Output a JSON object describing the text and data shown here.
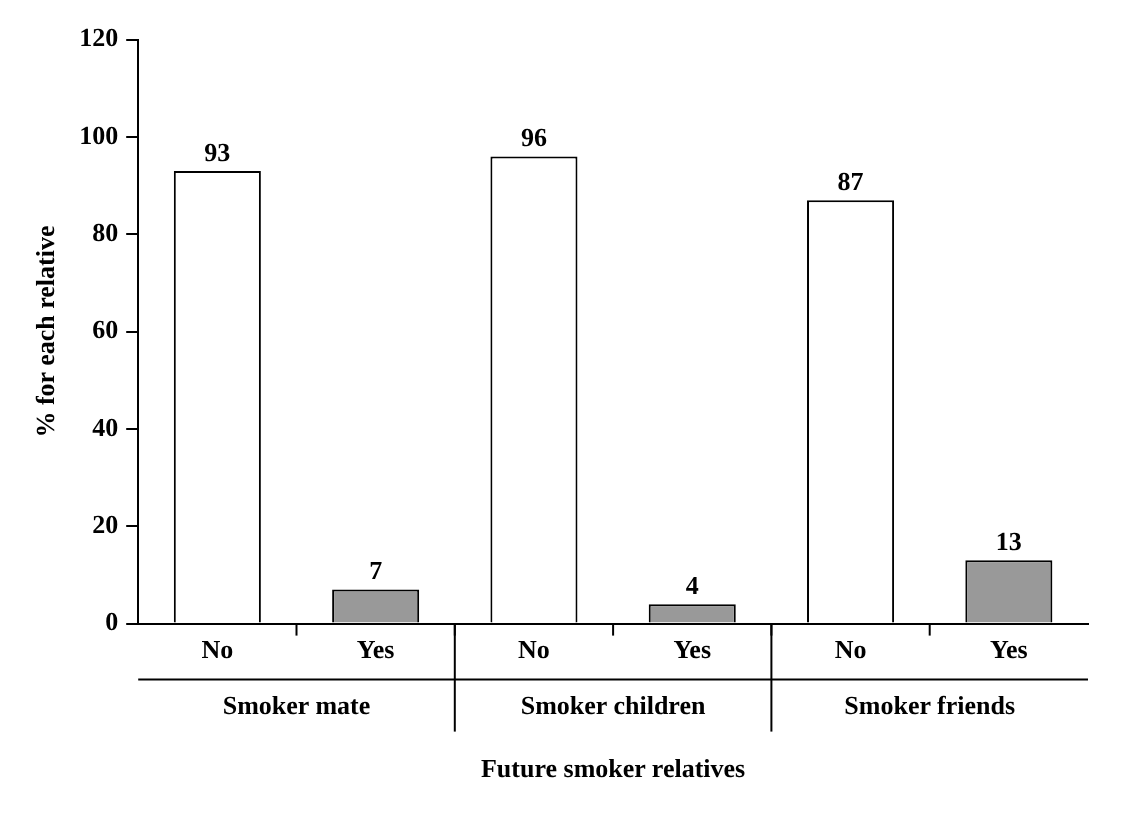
{
  "chart_data": {
    "type": "bar",
    "categories": [
      "No",
      "Yes",
      "No",
      "Yes",
      "No",
      "Yes"
    ],
    "values": [
      93,
      7,
      96,
      4,
      87,
      13
    ],
    "colors": [
      "#ffffff",
      "#999999",
      "#ffffff",
      "#999999",
      "#ffffff",
      "#999999"
    ],
    "ylabel": "% for each relative",
    "xlabel": "Future smoker relatives",
    "annotations": [
      "Smoker mate",
      "Smoker children",
      "Smoker friends"
    ],
    "ylim": [
      0,
      120
    ],
    "yticks": [
      0,
      20,
      40,
      60,
      80,
      100,
      120
    ],
    "grid": false,
    "legend": false,
    "data_labels": true
  }
}
